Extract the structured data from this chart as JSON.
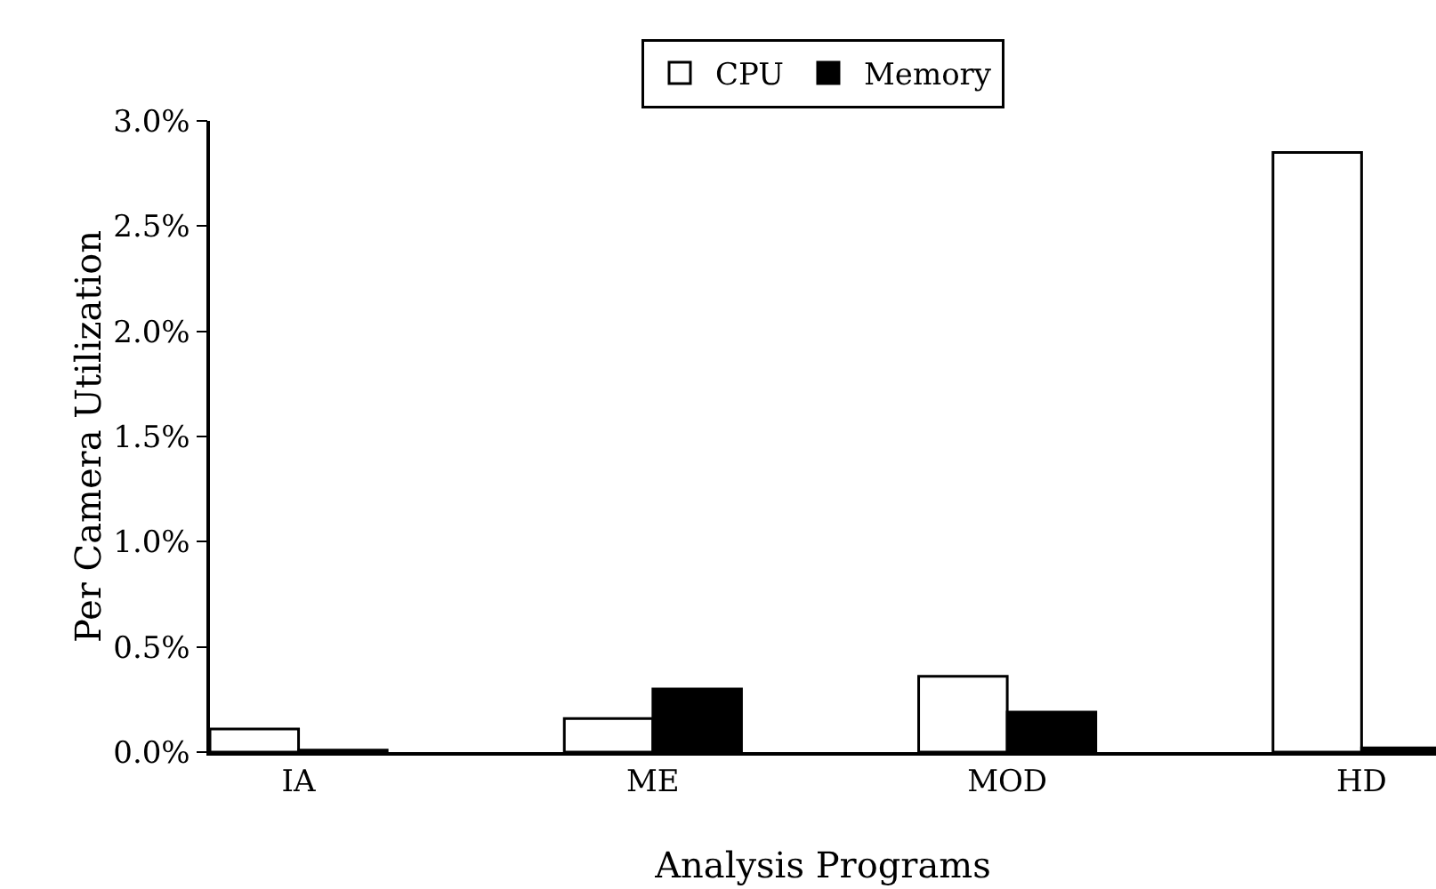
{
  "chart_data": {
    "type": "bar",
    "xlabel": "Analysis Programs",
    "ylabel": "Per Camera Utilization",
    "categories": [
      "IA",
      "ME",
      "MOD",
      "HD"
    ],
    "series": [
      {
        "name": "CPU",
        "color": "#ffffff",
        "values": [
          0.11,
          0.16,
          0.36,
          2.85
        ]
      },
      {
        "name": "Memory",
        "color": "#000000",
        "values": [
          0.01,
          0.3,
          0.19,
          0.02
        ]
      }
    ],
    "ylim": [
      0,
      3
    ],
    "yticks": [
      {
        "value": 0,
        "label": "0.0%"
      },
      {
        "value": 0.5,
        "label": "0.5%"
      },
      {
        "value": 1,
        "label": "1.0%"
      },
      {
        "value": 1.5,
        "label": "1.5%"
      },
      {
        "value": 2,
        "label": "2.0%"
      },
      {
        "value": 2.5,
        "label": "2.5%"
      },
      {
        "value": 3,
        "label": "3.0%"
      }
    ],
    "grid": false,
    "legend": "top"
  }
}
